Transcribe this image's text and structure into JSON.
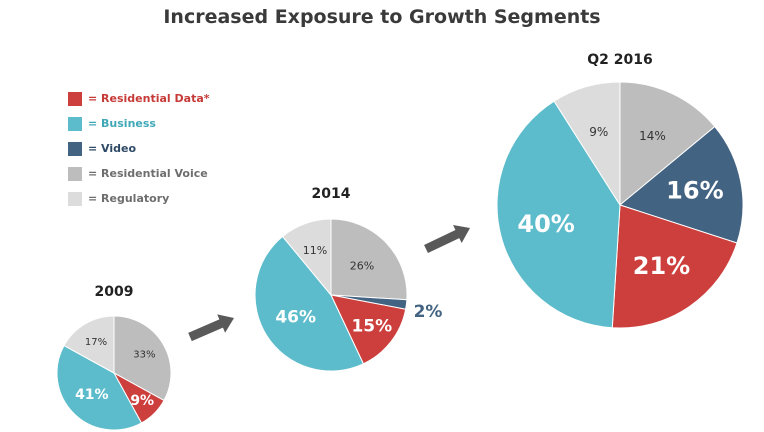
{
  "title": "Increased Exposure to Growth Segments",
  "colors": {
    "residential_data": "#cc3f3c",
    "business": "#5dbccb",
    "video": "#426382",
    "residential_voice": "#bdbdbd",
    "regulatory": "#dcdcdc"
  },
  "legend": [
    {
      "label": "= Residential  Data*",
      "color": "#cc3f3c",
      "text_color": "#c63b38"
    },
    {
      "label": "= Business",
      "color": "#5dbccb",
      "text_color": "#3fa8b8"
    },
    {
      "label": "= Video",
      "color": "#426382",
      "text_color": "#2e4a66"
    },
    {
      "label": "= Residential  Voice",
      "color": "#bdbdbd",
      "text_color": "#6e6e6e"
    },
    {
      "label": "= Regulatory",
      "color": "#dcdcdc",
      "text_color": "#6e6e6e"
    }
  ],
  "chart_data": [
    {
      "type": "pie",
      "title": "2009",
      "categories": [
        "Residential Voice",
        "Residential Data*",
        "Business",
        "Regulatory"
      ],
      "values": [
        33,
        9,
        41,
        17
      ],
      "labels": [
        "33%",
        "9%",
        "41%",
        "17%"
      ],
      "colors": [
        "#bdbdbd",
        "#cc3f3c",
        "#5dbccb",
        "#dcdcdc"
      ]
    },
    {
      "type": "pie",
      "title": "2014",
      "categories": [
        "Residential Voice",
        "Video",
        "Residential Data*",
        "Business",
        "Regulatory"
      ],
      "values": [
        26,
        2,
        15,
        46,
        11
      ],
      "labels": [
        "26%",
        "2%",
        "15%",
        "46%",
        "11%"
      ],
      "colors": [
        "#bdbdbd",
        "#426382",
        "#cc3f3c",
        "#5dbccb",
        "#dcdcdc"
      ]
    },
    {
      "type": "pie",
      "title": "Q2 2016",
      "categories": [
        "Residential Voice",
        "Video",
        "Residential Data*",
        "Business",
        "Regulatory"
      ],
      "values": [
        14,
        16,
        21,
        40,
        9
      ],
      "labels": [
        "14%",
        "16%",
        "21%",
        "40%",
        "9%"
      ],
      "colors": [
        "#bdbdbd",
        "#426382",
        "#cc3f3c",
        "#5dbccb",
        "#dcdcdc"
      ]
    }
  ]
}
